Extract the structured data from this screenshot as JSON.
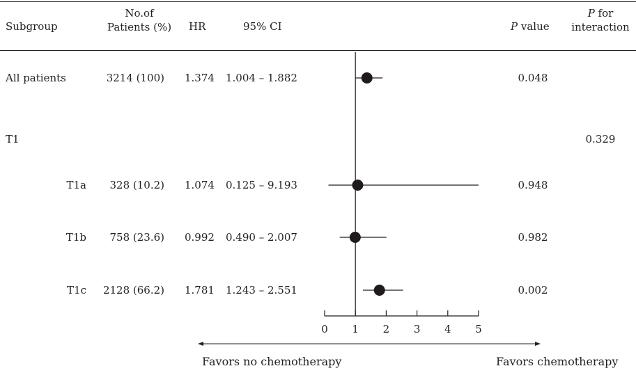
{
  "header": {
    "subgroup": "Subgroup",
    "patients_line1": "No.of",
    "patients_line2": "Patients (%)",
    "hr": "HR",
    "ci": "95% CI",
    "pvalue_italic": "P",
    "pvalue_rest": " value",
    "interaction_italic": "P",
    "interaction_rest": " for",
    "interaction_line2": "interaction"
  },
  "chart_data": {
    "type": "forest",
    "xlim": [
      0,
      5
    ],
    "reference_line": 1,
    "ticks": [
      "0",
      "1",
      "2",
      "3",
      "4",
      "5"
    ],
    "favors_left": "Favors no chemotherapy",
    "favors_right": "Favors chemotherapy",
    "rows": [
      {
        "label": "All patients",
        "indent": false,
        "patients": "3214 (100)",
        "hr": "1.374",
        "ci": "1.004 – 1.882",
        "p": "0.048",
        "p_interaction": "",
        "hr_value": 1.374,
        "lo": 1.004,
        "hi": 1.882
      },
      {
        "label": "T1",
        "indent": false,
        "patients": "",
        "hr": "",
        "ci": "",
        "p": "",
        "p_interaction": "0.329",
        "hr_value": null,
        "lo": null,
        "hi": null
      },
      {
        "label": "T1a",
        "indent": true,
        "patients": "328 (10.2)",
        "hr": "1.074",
        "ci": "0.125 – 9.193",
        "p": "0.948",
        "p_interaction": "",
        "hr_value": 1.074,
        "lo": 0.125,
        "hi": 9.193
      },
      {
        "label": "T1b",
        "indent": true,
        "patients": "758 (23.6)",
        "hr": "0.992",
        "ci": "0.490 – 2.007",
        "p": "0.982",
        "p_interaction": "",
        "hr_value": 0.992,
        "lo": 0.49,
        "hi": 2.007
      },
      {
        "label": "T1c",
        "indent": true,
        "patients": "2128 (66.2)",
        "hr": "1.781",
        "ci": "1.243 – 2.551",
        "p": "0.002",
        "p_interaction": "",
        "hr_value": 1.781,
        "lo": 1.243,
        "hi": 2.551
      }
    ]
  }
}
